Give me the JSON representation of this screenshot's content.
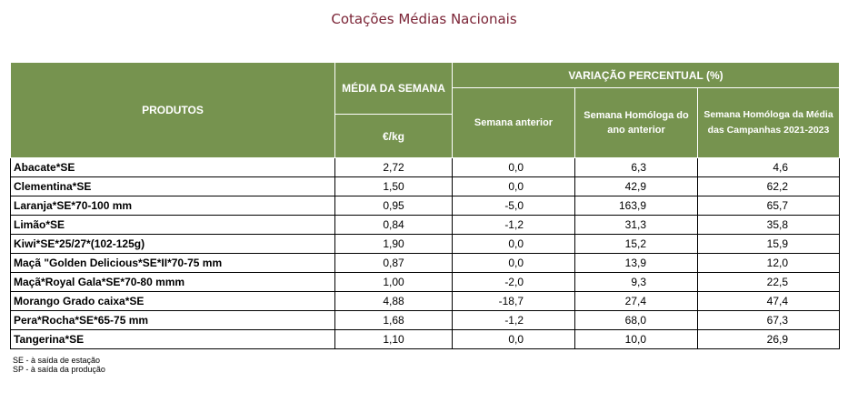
{
  "page": {
    "title": "Cotações Médias Nacionais"
  },
  "table": {
    "headers": {
      "products": "PRODUTOS",
      "weekly_avg": "MÉDIA DA SEMANA",
      "variation": "VARIAÇÃO PERCENTUAL (%)",
      "unit": "€/kg",
      "prev_week": "Semana anterior",
      "prev_year": "Semana Homóloga do ano anterior",
      "campaigns": "Semana Homóloga da Média das Campanhas 2021-2023"
    },
    "rows": [
      {
        "product": "Abacate*SE",
        "price": "2,72",
        "prev_week": "0,0",
        "prev_year": "6,3",
        "campaigns": "4,6"
      },
      {
        "product": "Clementina*SE",
        "price": "1,50",
        "prev_week": "0,0",
        "prev_year": "42,9",
        "campaigns": "62,2"
      },
      {
        "product": "Laranja*SE*70-100 mm",
        "price": "0,95",
        "prev_week": "-5,0",
        "prev_year": "163,9",
        "campaigns": "65,7"
      },
      {
        "product": "Limão*SE",
        "price": "0,84",
        "prev_week": "-1,2",
        "prev_year": "31,3",
        "campaigns": "35,8"
      },
      {
        "product": "Kiwi*SE*25/27*(102-125g)",
        "price": "1,90",
        "prev_week": "0,0",
        "prev_year": "15,2",
        "campaigns": "15,9"
      },
      {
        "product": "Maçã \"Golden Delicious*SE*II*70-75 mm",
        "price": "0,87",
        "prev_week": "0,0",
        "prev_year": "13,9",
        "campaigns": "12,0"
      },
      {
        "product": "Maçã*Royal Gala*SE*70-80 mmm",
        "price": "1,00",
        "prev_week": "-2,0",
        "prev_year": "9,3",
        "campaigns": "22,5"
      },
      {
        "product": "Morango Grado caixa*SE",
        "price": "4,88",
        "prev_week": "-18,7",
        "prev_year": "27,4",
        "campaigns": "47,4"
      },
      {
        "product": "Pera*Rocha*SE*65-75 mm",
        "price": "1,68",
        "prev_week": "-1,2",
        "prev_year": "68,0",
        "campaigns": "67,3"
      },
      {
        "product": "Tangerina*SE",
        "price": "1,10",
        "prev_week": "0,0",
        "prev_year": "10,0",
        "campaigns": "26,9"
      }
    ]
  },
  "notes": [
    "SE - à saída de estação",
    "SP - à saída da produção"
  ],
  "colors": {
    "header_bg": "#76934f",
    "title": "#7b2436"
  }
}
